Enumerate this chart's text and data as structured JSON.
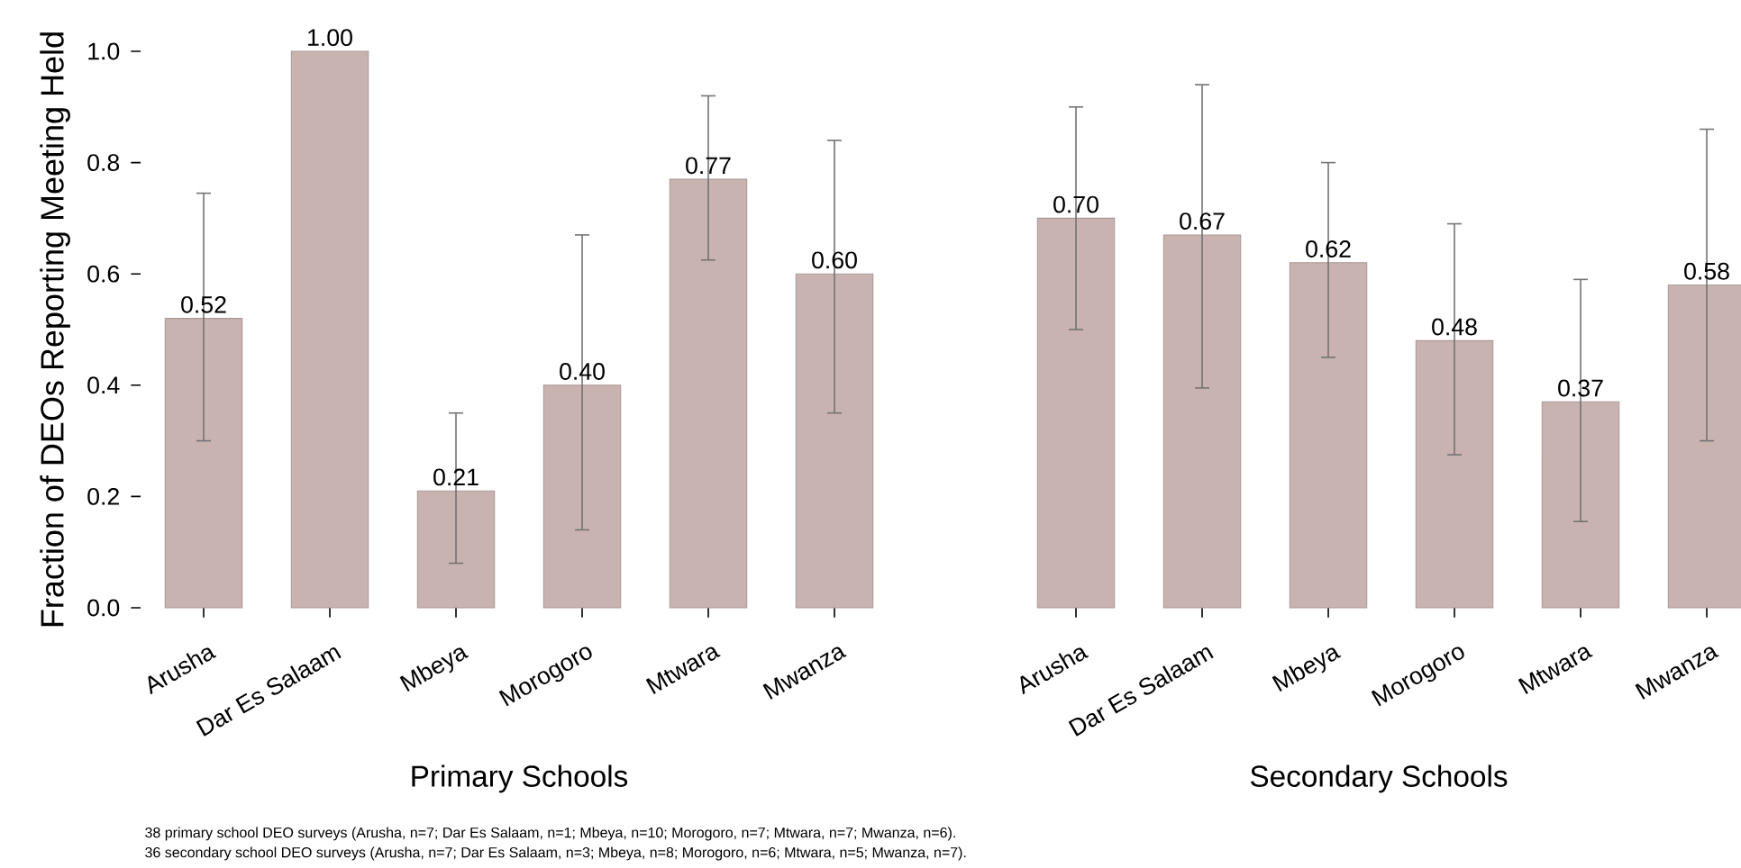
{
  "chart_data": [
    {
      "type": "bar",
      "xlabel": "Primary Schools",
      "ylabel": "Fraction of DEOs Reporting Meeting Held",
      "categories": [
        "Arusha",
        "Dar Es Salaam",
        "Mbeya",
        "Morogoro",
        "Mtwara",
        "Mwanza"
      ],
      "color": "#c9b3b0",
      "values": [
        0.52,
        1.0,
        0.21,
        0.4,
        0.77,
        0.6
      ],
      "value_labels": [
        "0.52",
        "1.00",
        "0.21",
        "0.40",
        "0.77",
        "0.60"
      ],
      "errors": [
        [
          0.3,
          0.745
        ],
        null,
        [
          0.08,
          0.35
        ],
        [
          0.14,
          0.67
        ],
        [
          0.625,
          0.92
        ],
        [
          0.35,
          0.84
        ]
      ],
      "ylim": [
        0,
        1.0
      ],
      "yticks": [
        {
          "value": 0,
          "label": "0.0"
        },
        0.2,
        0.4,
        0.6,
        0.8,
        {
          "value": 1.0,
          "label": "1.0"
        }
      ],
      "annotations": [
        "38 primary school DEO surveys (Arusha, n=7; Dar Es Salaam, n=1; Mbeya, n=10; Morogoro, n=7; Mtwara, n=7; Mwanza, n=6)."
      ]
    },
    {
      "type": "bar",
      "xlabel": "Secondary Schools",
      "categories": [
        "Arusha",
        "Dar Es Salaam",
        "Mbeya",
        "Morogoro",
        "Mtwara",
        "Mwanza"
      ],
      "color": "#c9b3b0",
      "values": [
        0.7,
        0.67,
        0.62,
        0.48,
        0.37,
        0.58
      ],
      "value_labels": [
        "0.70",
        "0.67",
        "0.62",
        "0.48",
        "0.37",
        "0.58"
      ],
      "errors": [
        [
          0.5,
          0.9
        ],
        [
          0.395,
          0.94
        ],
        [
          0.45,
          0.8
        ],
        [
          0.275,
          0.69
        ],
        [
          0.155,
          0.59
        ],
        [
          0.3,
          0.86
        ]
      ],
      "ylim": [
        0,
        1.0
      ],
      "tick_labels": "x",
      "annotations": [
        "36 secondary school DEO surveys (Arusha, n=7; Dar Es Salaam, n=3; Mbeya, n=8; Morogoro, n=6; Mtwara, n=5; Mwanza, n=7)."
      ]
    }
  ]
}
